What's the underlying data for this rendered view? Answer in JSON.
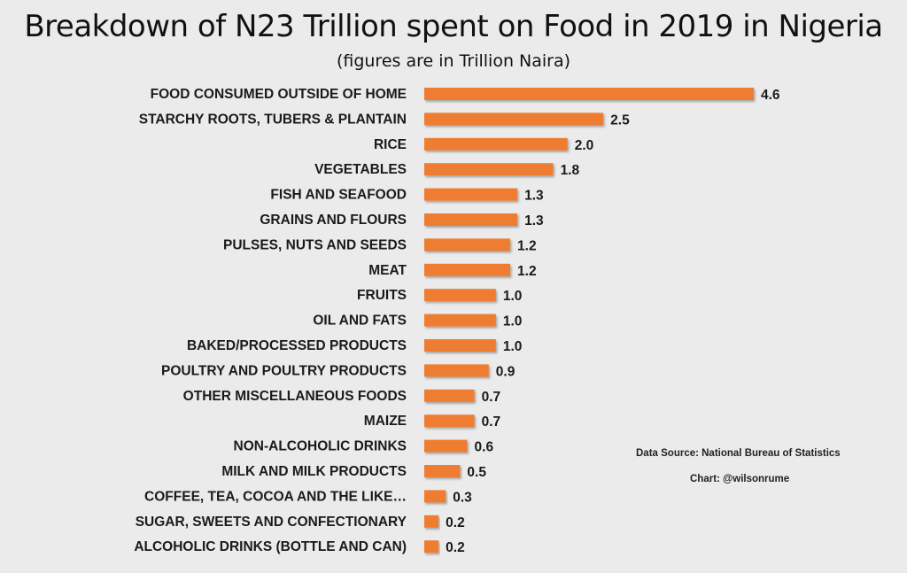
{
  "chart_data": {
    "type": "bar",
    "orientation": "horizontal",
    "title": "Breakdown of N23 Trillion spent on Food in 2019 in Nigeria",
    "subtitle": "(figures are in Trillion Naira)",
    "categories": [
      "FOOD CONSUMED OUTSIDE OF HOME",
      "STARCHY ROOTS, TUBERS & PLANTAIN",
      "RICE",
      "VEGETABLES",
      "FISH AND SEAFOOD",
      "GRAINS AND FLOURS",
      "PULSES, NUTS AND SEEDS",
      "MEAT",
      "FRUITS",
      "OIL AND FATS",
      "BAKED/PROCESSED PRODUCTS",
      "POULTRY AND POULTRY PRODUCTS",
      "OTHER  MISCELLANEOUS FOODS",
      "MAIZE",
      "NON-ALCOHOLIC DRINKS",
      "MILK AND MILK PRODUCTS",
      "COFFEE, TEA, COCOA AND THE LIKE…",
      "SUGAR, SWEETS AND CONFECTIONARY",
      "ALCOHOLIC DRINKS (BOTTLE AND CAN)"
    ],
    "values": [
      4.6,
      2.5,
      2.0,
      1.8,
      1.3,
      1.3,
      1.2,
      1.2,
      1.0,
      1.0,
      1.0,
      0.9,
      0.7,
      0.7,
      0.6,
      0.5,
      0.3,
      0.2,
      0.2
    ],
    "value_labels": [
      "4.6",
      "2.5",
      "2.0",
      "1.8",
      "1.3",
      "1.3",
      "1.2",
      "1.2",
      "1.0",
      "1.0",
      "1.0",
      "0.9",
      "0.7",
      "0.7",
      "0.6",
      "0.5",
      "0.3",
      "0.2",
      "0.2"
    ],
    "xlim": [
      0,
      4.6
    ],
    "grid": false,
    "bar_color": "#ee7d31"
  },
  "notes": {
    "source": "Data Source: National Bureau of Statistics",
    "credit": "Chart: @wilsonrume"
  }
}
